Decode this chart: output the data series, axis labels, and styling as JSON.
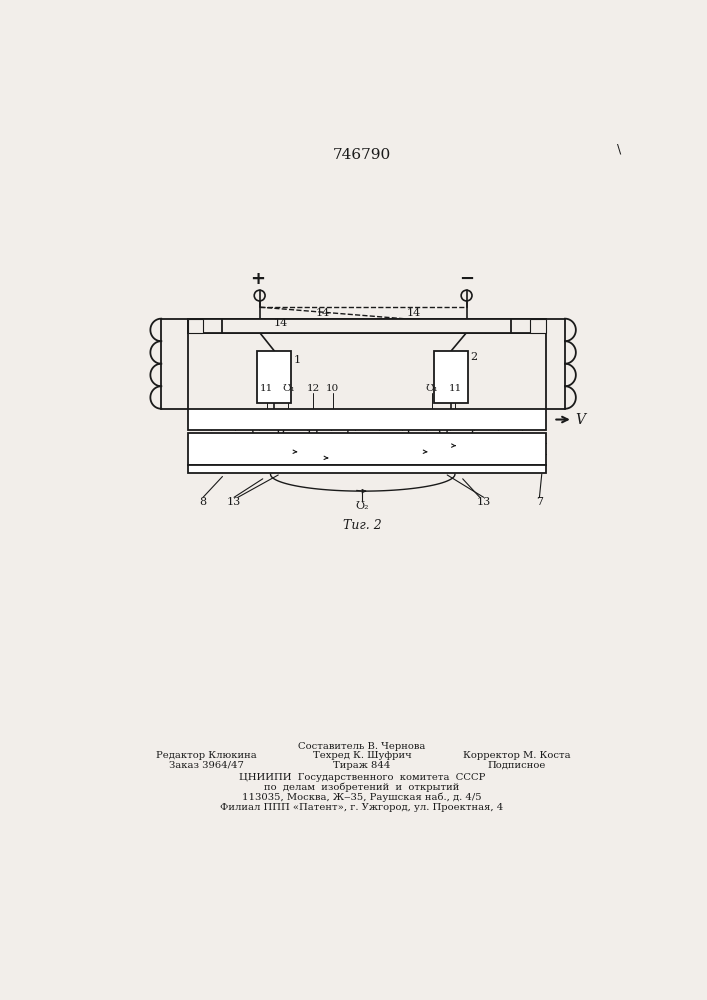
{
  "patent_number": "746790",
  "fig_label": "Τиг. 2",
  "bg_color": "#f2eeea",
  "black": "#1a1a1a",
  "footer": {
    "col1_line1": "Редактор Клюкина",
    "col1_line2": "Заказ 3964/47",
    "col2_line0": "Составитель В. Чернова",
    "col2_line1": "Техред К. Шуфрич",
    "col2_line2": "Тираж 844",
    "col3_line1": "Корректор М. Коста",
    "col3_line2": "Подписное",
    "org1": "ЦНИИПИ  Государственного  комитета  СССР",
    "org2": "по  делам  изобретений  и  открытий",
    "org3": "113035, Москва, Ж‒35, Раушская наб., д. 4/5",
    "org4": "Филиал ППП «Патент», г. Ужгород, ул. Проектная, 4"
  }
}
